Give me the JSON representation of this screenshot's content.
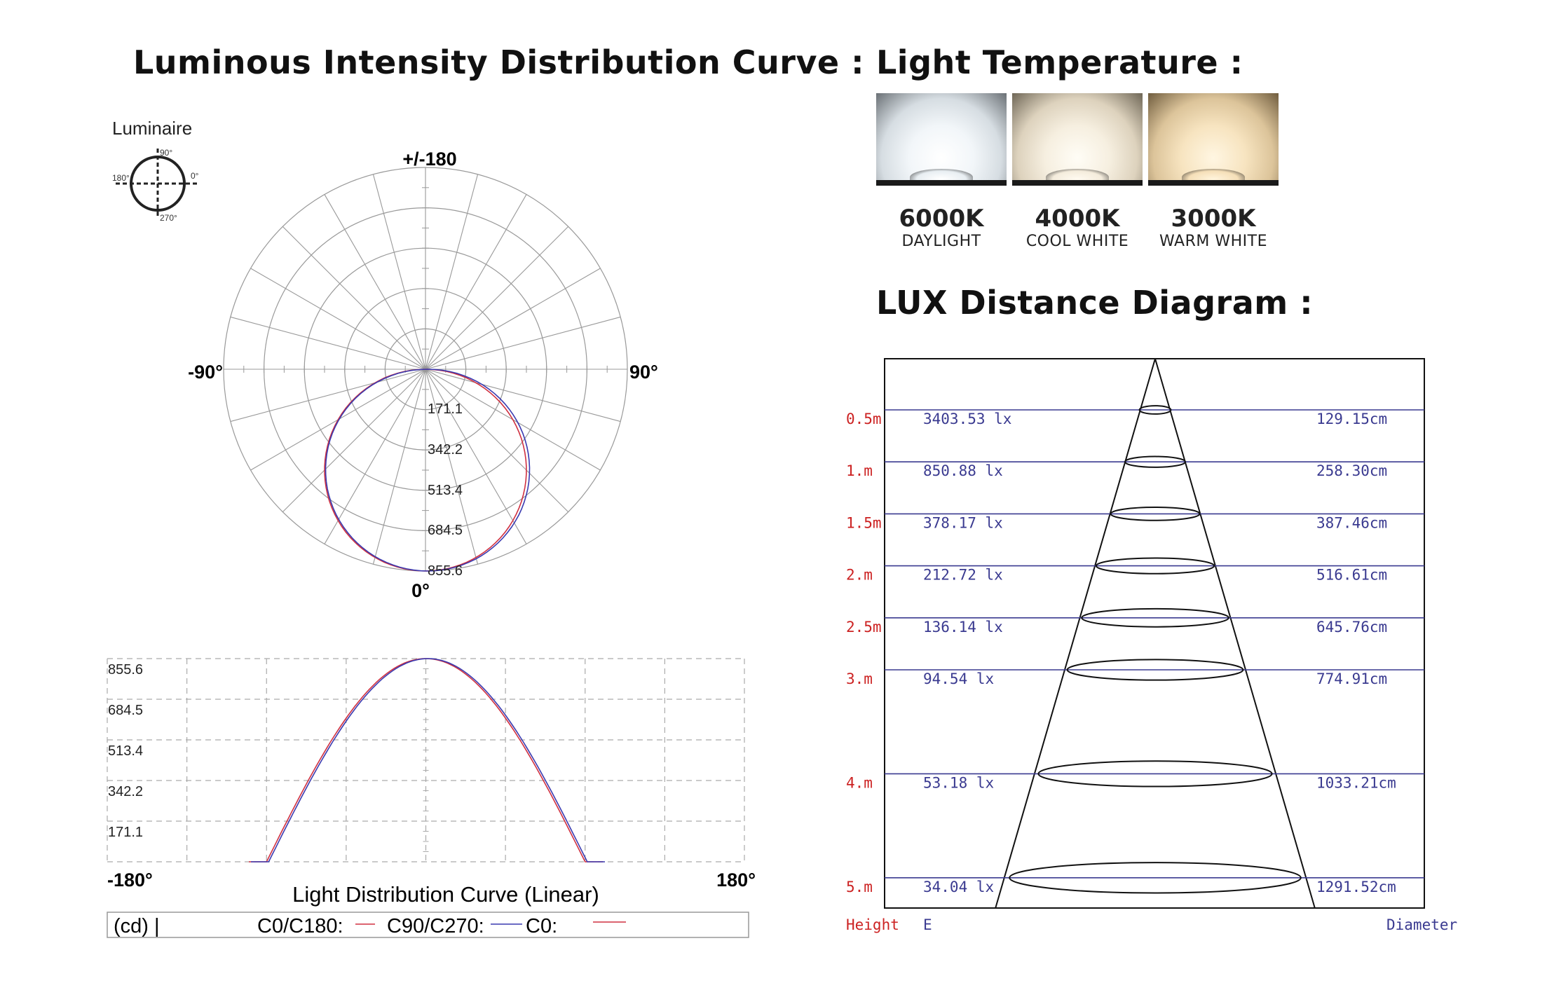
{
  "titles": {
    "distribution": "Luminous Intensity Distribution Curve :",
    "temperature": "Light Temperature :",
    "lux": "LUX Distance Diagram :"
  },
  "luminaire": {
    "label": "Luminaire",
    "angles": [
      "90°",
      "0°",
      "180°",
      "270°"
    ]
  },
  "temperatures": [
    {
      "kelvin": "6000K",
      "name": "DAYLIGHT",
      "color": "#e8eef2"
    },
    {
      "kelvin": "4000K",
      "name": "COOL WHITE",
      "color": "#f4ecdc"
    },
    {
      "kelvin": "3000K",
      "name": "WARM WHITE",
      "color": "#f5dfb8"
    }
  ],
  "colors": {
    "c0_c180": "#d03040",
    "c90_c270": "#3a3ab0",
    "lux_left_labels": "#cc2222",
    "lux_values": "#3a3a90",
    "grid": "#999999"
  },
  "chart_data": [
    {
      "type": "polar",
      "name": "polar-intensity",
      "top_label": "+/-180",
      "left_label": "-90°",
      "right_label": "90°",
      "bottom_label": "0°",
      "radial_ticks": [
        "171.1",
        "342.2",
        "513.4",
        "684.5",
        "855.6"
      ],
      "rmax": 855.6,
      "series": [
        {
          "name": "C0/C180",
          "color": "#d03040",
          "peak": 855.6,
          "exponent": 1.0
        },
        {
          "name": "C90/C270",
          "color": "#3a3ab0",
          "peak": 855.6,
          "exponent": 0.97
        }
      ]
    },
    {
      "type": "line",
      "name": "linear-distribution",
      "title": "Light Distribution Curve (Linear)",
      "x_left_label": "-180°",
      "x_right_label": "180°",
      "xlim": [
        -180,
        180
      ],
      "ylim": [
        0,
        855.6
      ],
      "y_ticks": [
        "855.6",
        "684.5",
        "513.4",
        "342.2",
        "171.1"
      ],
      "series": [
        {
          "name": "C0/C180",
          "color": "#d03040"
        },
        {
          "name": "C90/C270",
          "color": "#3a3ab0"
        }
      ],
      "legend": {
        "unit": "(cd) |",
        "c0_c180": "C0/C180:",
        "c90_c270": "C90/C270:",
        "c0": "C0:"
      }
    },
    {
      "type": "table",
      "name": "lux-distance",
      "footer": {
        "height": "Height",
        "e": "E",
        "diameter": "Diameter"
      },
      "rows": [
        {
          "height": "0.5m",
          "h": 0.5,
          "lux": "3403.53 lx",
          "diameter": "129.15cm"
        },
        {
          "height": "1.m",
          "h": 1.0,
          "lux": "850.88 lx",
          "diameter": "258.30cm"
        },
        {
          "height": "1.5m",
          "h": 1.5,
          "lux": "378.17 lx",
          "diameter": "387.46cm"
        },
        {
          "height": "2.m",
          "h": 2.0,
          "lux": "212.72 lx",
          "diameter": "516.61cm"
        },
        {
          "height": "2.5m",
          "h": 2.5,
          "lux": "136.14 lx",
          "diameter": "645.76cm"
        },
        {
          "height": "3.m",
          "h": 3.0,
          "lux": "94.54 lx",
          "diameter": "774.91cm"
        },
        {
          "height": "4.m",
          "h": 4.0,
          "lux": "53.18 lx",
          "diameter": "1033.21cm"
        },
        {
          "height": "5.m",
          "h": 5.0,
          "lux": "34.04 lx",
          "diameter": "1291.52cm"
        }
      ]
    }
  ]
}
